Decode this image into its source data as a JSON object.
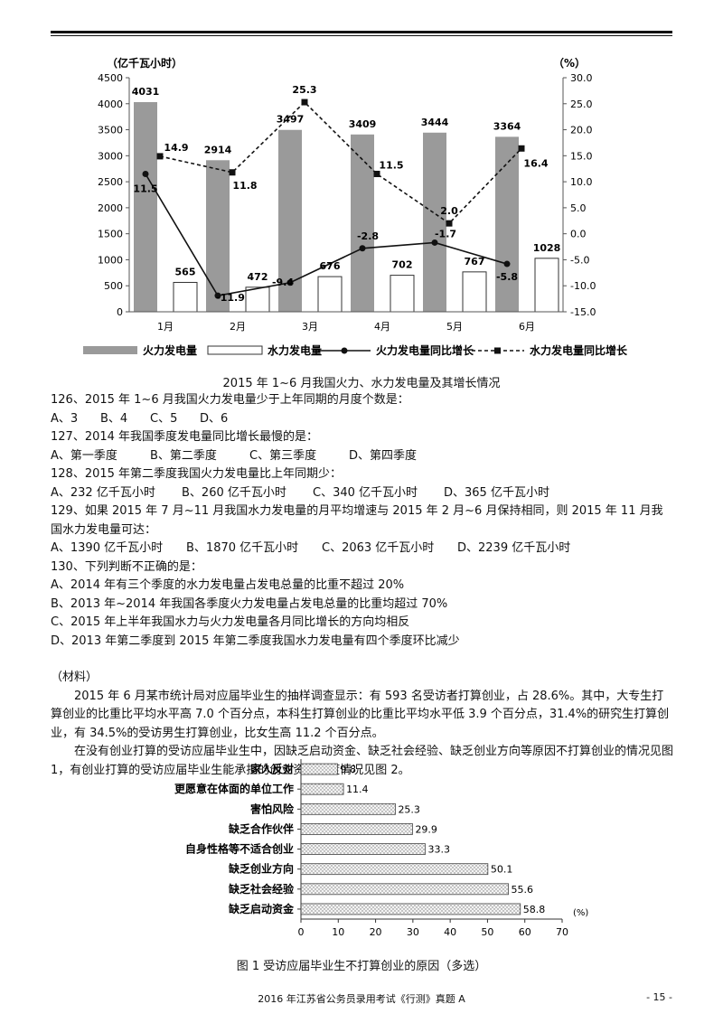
{
  "chart1": {
    "left_unit": "（亿千瓦小时）",
    "right_unit": "（%）",
    "legend": [
      "火力发电量",
      "水力发电量",
      "火力发电量同比增长",
      "水力发电量同比增长"
    ],
    "caption": "2015 年 1~6 月我国火力、水力发电量及其增长情况"
  },
  "chart_data": [
    {
      "type": "bar",
      "categories": [
        "1月",
        "2月",
        "3月",
        "4月",
        "5月",
        "6月"
      ],
      "series": [
        {
          "name": "火力发电量",
          "type": "bar",
          "axis": "left",
          "values": [
            4031,
            2914,
            3497,
            3409,
            3444,
            3364
          ],
          "color": "#9a9a9a"
        },
        {
          "name": "水力发电量",
          "type": "bar",
          "axis": "left",
          "values": [
            565,
            472,
            676,
            702,
            767,
            1028
          ],
          "color": "#ffffff"
        },
        {
          "name": "火力发电量同比增长",
          "type": "line",
          "axis": "right",
          "values": [
            11.5,
            -11.9,
            -9.4,
            -2.8,
            -1.7,
            -5.8
          ],
          "color": "#111111"
        },
        {
          "name": "水力发电量同比增长",
          "type": "line",
          "axis": "right",
          "values": [
            14.9,
            11.8,
            25.3,
            11.5,
            2.0,
            16.4
          ],
          "color": "#111111"
        }
      ],
      "left_ylim": [
        0,
        4500
      ],
      "right_ylim": [
        -15,
        30
      ],
      "left_ticks": [
        "0",
        "500",
        "1000",
        "1500",
        "2000",
        "2500",
        "3000",
        "3500",
        "4000",
        "4500"
      ],
      "right_ticks": [
        "-15.0",
        "-10.0",
        "-5.0",
        "0.0",
        "5.0",
        "10.0",
        "15.0",
        "20.0",
        "25.0",
        "30.0"
      ],
      "legend_position": "bottom"
    },
    {
      "type": "bar",
      "orientation": "horizontal",
      "categories": [
        "家人反对",
        "更愿意在体面的单位工作",
        "害怕风险",
        "缺乏合作伙伴",
        "自身性格等不适合创业",
        "缺乏创业方向",
        "缺乏社会经验",
        "缺乏启动资金"
      ],
      "values": [
        9.8,
        11.4,
        25.3,
        29.9,
        33.3,
        50.1,
        55.6,
        58.8
      ],
      "xlim": [
        0,
        70
      ],
      "x_ticks": [
        "0",
        "10",
        "20",
        "30",
        "40",
        "50",
        "60",
        "70"
      ],
      "x_unit": "(%)"
    }
  ],
  "questions": [
    {
      "stem": "126、2015 年 1~6 月我国火力发电量少于上年同期的月度个数是：",
      "options": [
        "A、3",
        "B、4",
        "C、5",
        "D、6"
      ]
    },
    {
      "stem": "127、2014 年我国季度发电量同比增长最慢的是：",
      "options": [
        "A、第一季度",
        "B、第二季度",
        "C、第三季度",
        "D、第四季度"
      ]
    },
    {
      "stem": "128、2015 年第二季度我国火力发电量比上年同期少：",
      "options": [
        "A、232 亿千瓦小时",
        "B、260 亿千瓦小时",
        "C、340 亿千瓦小时",
        "D、365 亿千瓦小时"
      ]
    },
    {
      "stem": "129、如果 2015 年 7 月~11 月我国水力发电量的月平均增速与 2015 年 2 月~6 月保持相同，则 2015 年 11 月我国水力发电量可达：",
      "options": [
        "A、1390 亿千瓦小时",
        "B、1870 亿千瓦小时",
        "C、2063 亿千瓦小时",
        "D、2239 亿千瓦小时"
      ]
    }
  ],
  "q130": {
    "stem": "130、下列判断不正确的是：",
    "options": [
      "A、2014 年有三个季度的水力发电量占发电总量的比重不超过 20%",
      "B、2013 年~2014 年我国各季度火力发电量占发电总量的比重均超过 70%",
      "C、2015 年上半年我国水力与火力发电量各月同比增长的方向均相反",
      "D、2013 年第二季度到 2015 年第二季度我国水力发电量有四个季度环比减少"
    ]
  },
  "material": {
    "label": "（材料）",
    "para1": "2015 年 6 月某市统计局对应届毕业生的抽样调查显示：有 593 名受访者打算创业，占 28.6%。其中，大专生打算创业的比重比平均水平高 7.0 个百分点，本科生打算创业的比重比平均水平低 3.9 个百分点，31.4%的研究生打算创业，有 34.5%的受访男生打算创业，比女生高 11.2 个百分点。",
    "para2": "在没有创业打算的受访应届毕业生中，因缺乏启动资金、缺乏社会经验、缺乏创业方向等原因不打算创业的情况见图 1，有创业打算的受访应届毕业生能承担的创业资金额度情况见图 2。"
  },
  "chart2": {
    "caption": "图 1   受访应届毕业生不打算创业的原因（多选）"
  },
  "footer": {
    "text": "2016 年江苏省公务员录用考试《行测》真题 A",
    "page": "- 15 -"
  }
}
